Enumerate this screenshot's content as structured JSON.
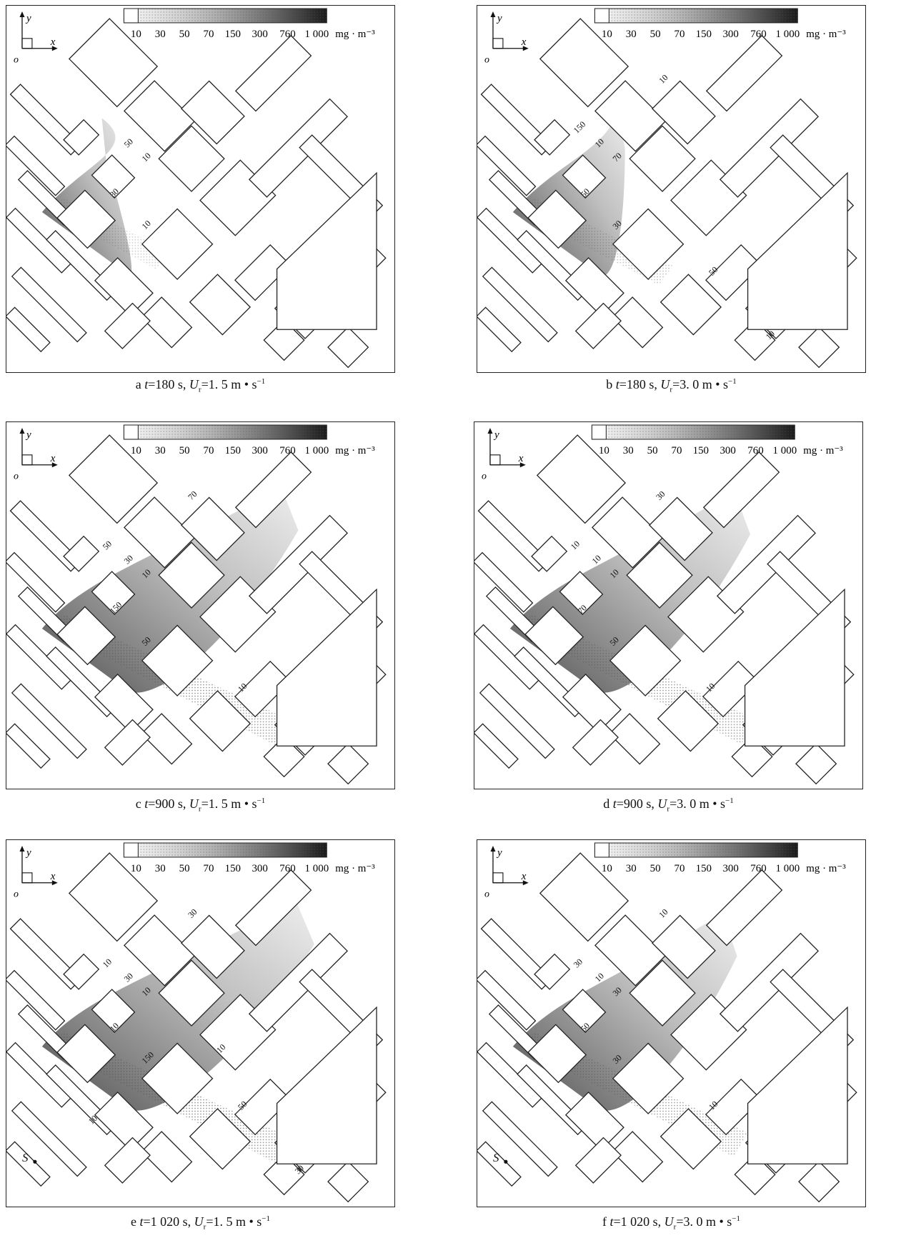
{
  "legend": {
    "ticks": [
      "10",
      "30",
      "50",
      "70",
      "150",
      "300",
      "760",
      "1 000"
    ],
    "unit": "mg · m⁻³"
  },
  "axes": {
    "x": "x",
    "y": "y",
    "origin": "o"
  },
  "panels": [
    {
      "id": "a",
      "caption": {
        "letter": "a",
        "t": "180",
        "t_unit": "s",
        "u": "1. 5",
        "u_unit": "m • s",
        "exp": "−1"
      },
      "labels": [
        "50",
        "10",
        "30",
        "10"
      ],
      "plume": 0.2
    },
    {
      "id": "b",
      "caption": {
        "letter": "b",
        "t": "180",
        "t_unit": "s",
        "u": "3. 0",
        "u_unit": "m • s",
        "exp": "−1"
      },
      "labels": [
        "10",
        "70",
        "50",
        "30",
        "10",
        "150",
        "50",
        "10"
      ],
      "plume": 0.35
    },
    {
      "id": "c",
      "caption": {
        "letter": "c",
        "t": "900",
        "t_unit": "s",
        "u": "1. 5",
        "u_unit": "m • s",
        "exp": "−1"
      },
      "labels": [
        "30",
        "10",
        "150",
        "50",
        "70",
        "50",
        "10"
      ],
      "plume": 0.8
    },
    {
      "id": "d",
      "caption": {
        "letter": "d",
        "t": "900",
        "t_unit": "s",
        "u": "3. 0",
        "u_unit": "m • s",
        "exp": "−1"
      },
      "labels": [
        "10",
        "10",
        "70",
        "50",
        "30",
        "10",
        "10"
      ],
      "plume": 0.75
    },
    {
      "id": "e",
      "caption": {
        "letter": "e",
        "t": "1 020",
        "t_unit": "s",
        "u": "1. 5",
        "u_unit": "m • s",
        "exp": "−1"
      },
      "labels": [
        "30",
        "10",
        "10",
        "150",
        "30",
        "10",
        "50",
        "30",
        "10",
        "10"
      ],
      "plume": 0.85,
      "source": "S"
    },
    {
      "id": "f",
      "caption": {
        "letter": "f",
        "t": "1 020",
        "t_unit": "s",
        "u": "3. 0",
        "u_unit": "m • s",
        "exp": "−1"
      },
      "labels": [
        "10",
        "30",
        "50",
        "30",
        "10",
        "30",
        "10"
      ],
      "plume": 0.7,
      "source": "S"
    }
  ]
}
